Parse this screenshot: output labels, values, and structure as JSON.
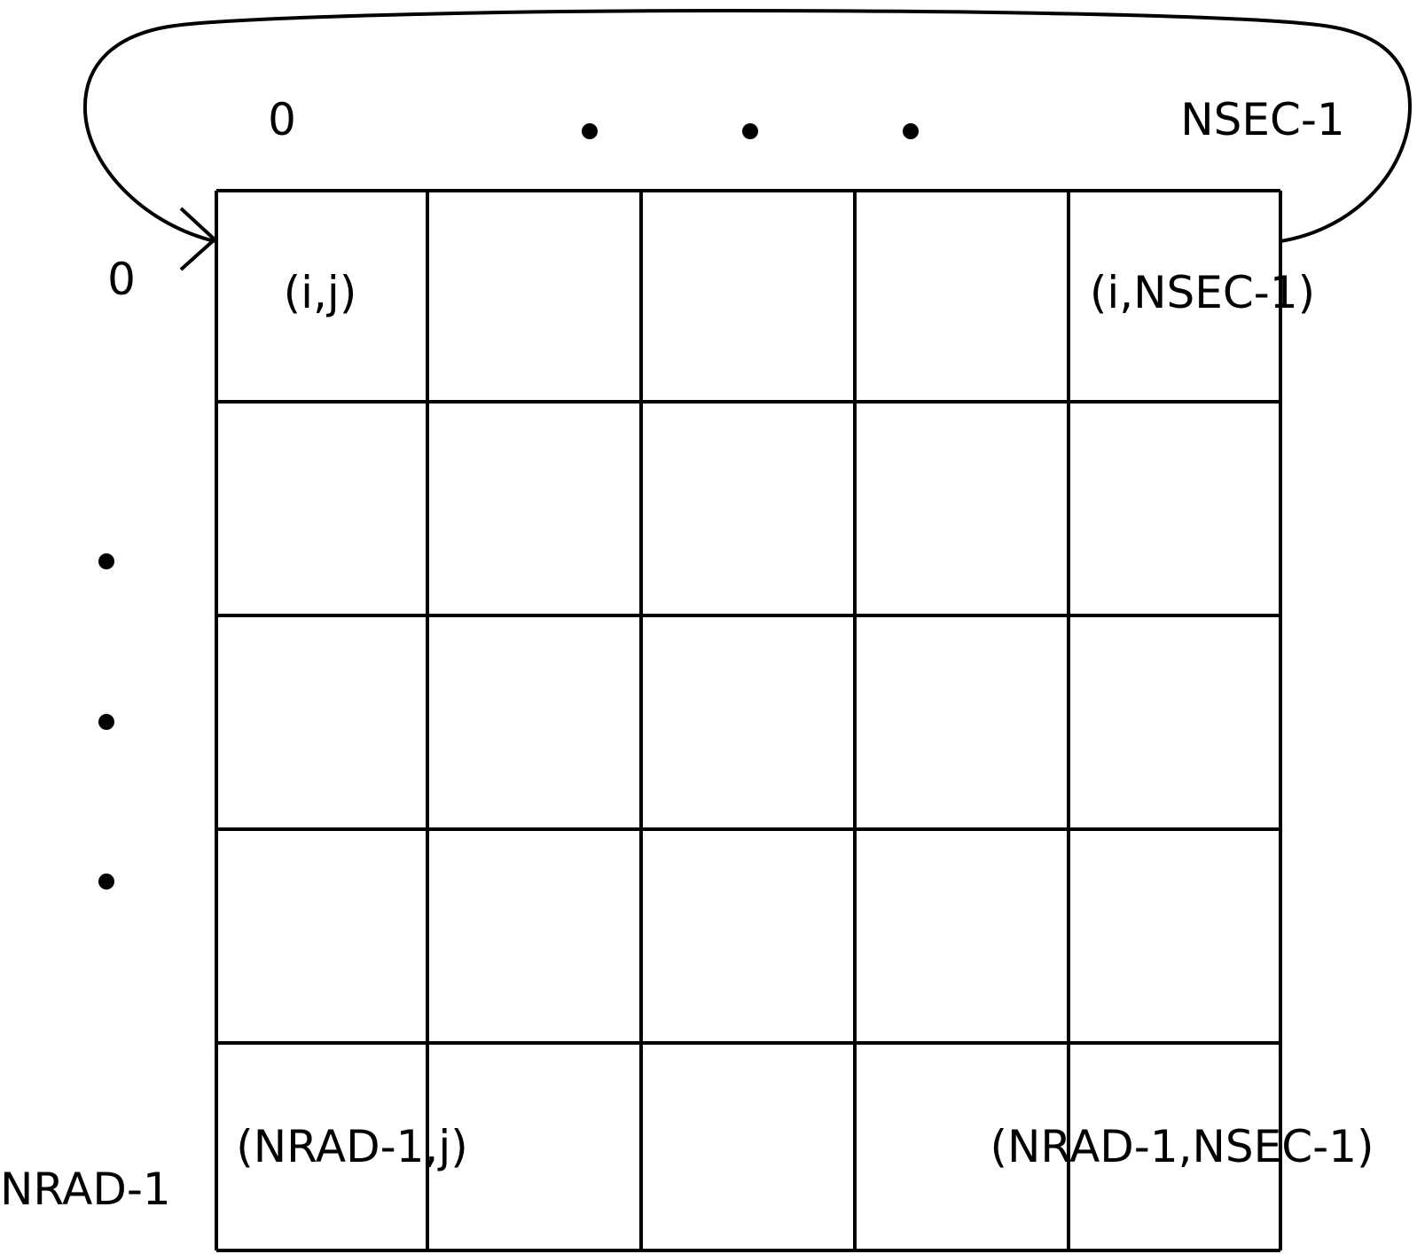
{
  "grid": {
    "rows": 5,
    "cols": 5
  },
  "column_labels": {
    "first": "0",
    "last": "NSEC-1"
  },
  "row_labels": {
    "first": "0",
    "last": "NRAD-1"
  },
  "cell_labels": {
    "top_left": "(i,j)",
    "top_right": "(i,NSEC-1)",
    "bottom_left": "(NRAD-1,j)",
    "bottom_right": "(NRAD-1,NSEC-1)"
  },
  "ellipsis": {
    "horizontal_dots": 3,
    "vertical_dots": 3
  },
  "colors": {
    "stroke": "#000000",
    "background": "#ffffff"
  }
}
